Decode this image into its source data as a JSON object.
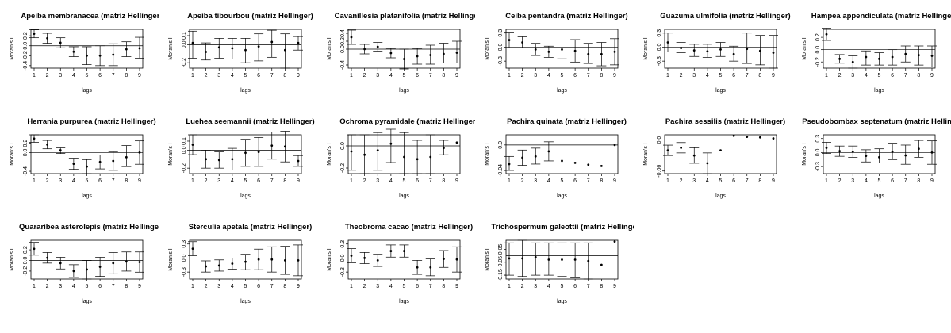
{
  "chart_data": [
    {
      "type": "scatter",
      "title": "Apeiba membranacea (matriz Hellinger)",
      "xlabel": "lags",
      "ylabel": "Moran's I",
      "x": [
        1,
        2,
        3,
        4,
        5,
        6,
        7,
        8,
        9
      ],
      "yticks": [
        -0.4,
        -0.2,
        0,
        0.2
      ],
      "ylim": [
        -0.45,
        0.33
      ],
      "y": [
        0.24,
        0.15,
        0.06,
        -0.12,
        -0.2,
        -0.2,
        -0.18,
        -0.07,
        -0.05
      ],
      "lower": [
        0.16,
        0.05,
        -0.04,
        -0.22,
        -0.38,
        -0.4,
        -0.4,
        -0.22,
        -0.25
      ],
      "upper": [
        0.32,
        0.25,
        0.16,
        -0.02,
        -0.02,
        0,
        0.04,
        0.08,
        0.17
      ]
    },
    {
      "type": "scatter",
      "title": "Apeiba tibourbou (matriz Hellinger)",
      "xlabel": "lags",
      "ylabel": "Moran's I",
      "x": [
        1,
        2,
        3,
        4,
        5,
        6,
        7,
        8,
        9
      ],
      "yticks": [
        -0.2,
        0,
        0.1
      ],
      "ylim": [
        -0.26,
        0.17
      ],
      "y": [
        0.02,
        -0.08,
        -0.03,
        -0.04,
        -0.06,
        -0.02,
        0.03,
        -0.06,
        0.02
      ],
      "lower": [
        -0.15,
        -0.17,
        -0.15,
        -0.16,
        -0.2,
        -0.18,
        -0.14,
        -0.26,
        -0.06
      ],
      "upper": [
        0.15,
        0.02,
        0.07,
        0.07,
        0.07,
        0.12,
        0.16,
        0.12,
        0.09
      ]
    },
    {
      "type": "scatter",
      "title": "Cavanillesia platanifolia (matriz Hellinger)",
      "xlabel": "lags",
      "ylabel": "Moran's I",
      "x": [
        1,
        2,
        3,
        4,
        5,
        6,
        7,
        8,
        9
      ],
      "yticks": [
        -0.4,
        0,
        0.2,
        0.4
      ],
      "ylim": [
        -0.48,
        0.5
      ],
      "y": [
        0.3,
        0,
        0.06,
        -0.1,
        -0.25,
        -0.18,
        -0.15,
        -0.12,
        -0.09
      ],
      "lower": [
        0.12,
        -0.12,
        -0.05,
        -0.22,
        -0.5,
        -0.38,
        -0.38,
        -0.35,
        -0.35
      ],
      "upper": [
        0.48,
        0.12,
        0.17,
        0.02,
        0,
        0.02,
        0.1,
        0.15,
        0.2
      ]
    },
    {
      "type": "scatter",
      "title": "Ceiba pentandra (matriz Hellinger)",
      "xlabel": "lags",
      "ylabel": "Moran's I",
      "x": [
        1,
        2,
        3,
        4,
        5,
        6,
        7,
        8,
        9
      ],
      "yticks": [
        -0.3,
        0,
        0.3
      ],
      "ylim": [
        -0.45,
        0.38
      ],
      "y": [
        0.15,
        0.1,
        -0.05,
        -0.1,
        -0.05,
        -0.08,
        -0.15,
        -0.15,
        -0.1
      ],
      "lower": [
        -0.02,
        -0.02,
        -0.18,
        -0.22,
        -0.25,
        -0.32,
        -0.35,
        -0.4,
        -0.38
      ],
      "upper": [
        0.32,
        0.22,
        0.08,
        0.02,
        0.15,
        0.16,
        0.08,
        0.1,
        0.18
      ]
    },
    {
      "type": "scatter",
      "title": "Guazuma ulmifolia (matriz Hellinger)",
      "xlabel": "lags",
      "ylabel": "Moran's I",
      "x": [
        1,
        2,
        3,
        4,
        5,
        6,
        7,
        8,
        9
      ],
      "yticks": [
        -0.3,
        0,
        0.3
      ],
      "ylim": [
        -0.45,
        0.38
      ],
      "y": [
        0.1,
        -0.02,
        -0.07,
        -0.09,
        -0.05,
        -0.15,
        -0.04,
        -0.08,
        -0.12
      ],
      "lower": [
        -0.1,
        -0.12,
        -0.2,
        -0.22,
        -0.2,
        -0.3,
        -0.35,
        -0.38,
        -0.45
      ],
      "upper": [
        0.3,
        0.1,
        0.06,
        0.06,
        0.1,
        0.02,
        0.3,
        0.25,
        0.25
      ]
    },
    {
      "type": "scatter",
      "title": "Hampea appendiculata (matriz Hellinger)",
      "xlabel": "lags",
      "ylabel": "Moran's I",
      "x": [
        1,
        2,
        3,
        4,
        5,
        6,
        7,
        8,
        9
      ],
      "yticks": [
        -0.2,
        0,
        0.2
      ],
      "ylim": [
        -0.3,
        0.33
      ],
      "y": [
        0.25,
        -0.15,
        -0.2,
        -0.12,
        -0.15,
        -0.12,
        -0.07,
        -0.09,
        -0.1
      ],
      "lower": [
        0.15,
        -0.22,
        -0.3,
        -0.25,
        -0.25,
        -0.25,
        -0.2,
        -0.25,
        -0.28
      ],
      "upper": [
        0.35,
        -0.08,
        -0.1,
        -0.02,
        -0.05,
        0,
        0.06,
        0.06,
        0.06
      ]
    },
    {
      "type": "scatter",
      "title": "Herrania purpurea (matriz Hellinger)",
      "xlabel": "lags",
      "ylabel": "Moran's I",
      "x": [
        1,
        2,
        3,
        4,
        5,
        6,
        7,
        8,
        9
      ],
      "yticks": [
        -0.4,
        0,
        0.2
      ],
      "ylim": [
        -0.45,
        0.38
      ],
      "y": [
        0.3,
        0.17,
        0.05,
        -0.24,
        -0.3,
        -0.2,
        -0.18,
        -0.1,
        0
      ],
      "lower": [
        0.22,
        0.08,
        -0.02,
        -0.36,
        -0.45,
        -0.35,
        -0.38,
        -0.3,
        -0.25
      ],
      "upper": [
        0.38,
        0.26,
        0.1,
        -0.12,
        -0.15,
        -0.05,
        0.02,
        0.15,
        0.25
      ]
    },
    {
      "type": "scatter",
      "title": "Luehea seemannii (matriz Hellinger)",
      "xlabel": "lags",
      "ylabel": "Moran's I",
      "x": [
        1,
        2,
        3,
        4,
        5,
        6,
        7,
        8,
        9
      ],
      "yticks": [
        -0.2,
        0,
        0.1
      ],
      "ylim": [
        -0.26,
        0.17
      ],
      "y": [
        0.06,
        -0.1,
        -0.11,
        -0.1,
        -0.03,
        -0.02,
        0.05,
        0.04,
        -0.12
      ],
      "lower": [
        -0.05,
        -0.2,
        -0.2,
        -0.22,
        -0.18,
        -0.18,
        -0.1,
        -0.13,
        -0.18
      ],
      "upper": [
        0.17,
        0,
        -0.02,
        0.02,
        0.12,
        0.14,
        0.2,
        0.21,
        -0.06
      ]
    },
    {
      "type": "scatter",
      "title": "Ochroma pyramidale (matriz Hellinger)",
      "xlabel": "lags",
      "ylabel": "Moran's I",
      "x": [
        1,
        2,
        3,
        4,
        5,
        6,
        7,
        8,
        9
      ],
      "yticks": [
        -0.2,
        0
      ],
      "ylim": [
        -0.25,
        0.1
      ],
      "y": [
        -0.05,
        -0.08,
        -0.04,
        0.02,
        -0.1,
        -0.12,
        -0.1,
        -0.02,
        0.03
      ],
      "lower": [
        -0.22,
        -0.25,
        -0.22,
        -0.15,
        -0.25,
        -0.25,
        -0.25,
        -0.08,
        null
      ],
      "upper": [
        0.1,
        0.1,
        0.12,
        0.15,
        0.12,
        0.05,
        0.1,
        0.05,
        null
      ]
    },
    {
      "type": "scatter",
      "title": "Pachira quinata (matriz Hellinger)",
      "xlabel": "lags",
      "ylabel": "Moran's I",
      "x": [
        1,
        2,
        3,
        4,
        5,
        6,
        7,
        8,
        9
      ],
      "yticks": [
        -0.04,
        0
      ],
      "ylim": [
        -0.045,
        0.016
      ],
      "y": [
        -0.03,
        -0.02,
        -0.018,
        -0.01,
        -0.025,
        -0.028,
        -0.031,
        -0.033,
        0.0
      ],
      "lower": [
        -0.04,
        -0.032,
        -0.03,
        -0.025,
        null,
        null,
        null,
        null,
        null
      ],
      "upper": [
        -0.018,
        -0.008,
        -0.005,
        0.005,
        null,
        null,
        null,
        null,
        null
      ]
    },
    {
      "type": "scatter",
      "title": "Pachira sessilis (matriz Hellinger)",
      "xlabel": "lags",
      "ylabel": "Moran's I",
      "x": [
        1,
        2,
        3,
        4,
        5,
        6,
        7,
        8,
        9
      ],
      "yticks": [
        -0.06,
        0
      ],
      "ylim": [
        -0.065,
        0.01
      ],
      "y": [
        -0.02,
        -0.015,
        -0.03,
        -0.045,
        -0.02,
        0.008,
        0.006,
        0.005,
        0.003
      ],
      "lower": [
        -0.03,
        -0.025,
        -0.045,
        -0.065,
        null,
        null,
        null,
        null,
        null
      ],
      "upper": [
        -0.01,
        -0.005,
        -0.015,
        -0.025,
        null,
        null,
        null,
        null,
        null
      ]
    },
    {
      "type": "scatter",
      "title": "Pseudobombax septenatum (matriz Hellinger)",
      "xlabel": "lags",
      "ylabel": "Moran's I",
      "x": [
        1,
        2,
        3,
        4,
        5,
        6,
        7,
        8,
        9
      ],
      "yticks": [
        -0.3,
        0,
        0.3
      ],
      "ylim": [
        -0.45,
        0.38
      ],
      "y": [
        0.1,
        0.03,
        0.02,
        -0.07,
        -0.1,
        0.02,
        -0.06,
        0.08,
        0
      ],
      "lower": [
        -0.02,
        -0.08,
        -0.1,
        -0.2,
        -0.22,
        -0.15,
        -0.25,
        -0.1,
        -0.25
      ],
      "upper": [
        0.22,
        0.14,
        0.14,
        0.06,
        0.08,
        0.2,
        0.16,
        0.26,
        0.25
      ]
    },
    {
      "type": "scatter",
      "title": "Quararibea asterolepis (matriz Hellinger)",
      "xlabel": "lags",
      "ylabel": "Moran's I",
      "x": [
        1,
        2,
        3,
        4,
        5,
        6,
        7,
        8,
        9
      ],
      "yticks": [
        -0.2,
        0,
        0.2
      ],
      "ylim": [
        -0.35,
        0.38
      ],
      "y": [
        0.22,
        0.05,
        -0.05,
        -0.2,
        -0.17,
        -0.12,
        -0.05,
        -0.02,
        -0.03
      ],
      "lower": [
        0.1,
        -0.05,
        -0.16,
        -0.32,
        -0.35,
        -0.3,
        -0.25,
        -0.2,
        -0.22
      ],
      "upper": [
        0.34,
        0.15,
        0.06,
        -0.08,
        0,
        0.06,
        0.15,
        0.16,
        0.16
      ]
    },
    {
      "type": "scatter",
      "title": "Sterculia apetala (matriz Hellinger)",
      "xlabel": "lags",
      "ylabel": "Moran's I",
      "x": [
        1,
        2,
        3,
        4,
        5,
        6,
        7,
        8,
        9
      ],
      "yticks": [
        -0.3,
        0,
        0.3
      ],
      "ylim": [
        -0.45,
        0.38
      ],
      "y": [
        0.2,
        -0.18,
        -0.16,
        -0.12,
        -0.08,
        -0.03,
        -0.03,
        -0.05,
        -0.05
      ],
      "lower": [
        0.05,
        -0.3,
        -0.28,
        -0.24,
        -0.25,
        -0.25,
        -0.3,
        -0.35,
        -0.38
      ],
      "upper": [
        0.35,
        -0.06,
        -0.04,
        0,
        0.08,
        0.19,
        0.24,
        0.25,
        0.28
      ]
    },
    {
      "type": "scatter",
      "title": "Theobroma cacao (matriz Hellinger)",
      "xlabel": "lags",
      "ylabel": "Moran's I",
      "x": [
        1,
        2,
        3,
        4,
        5,
        6,
        7,
        8,
        9
      ],
      "yticks": [
        -0.3,
        0,
        0.3
      ],
      "ylim": [
        -0.45,
        0.38
      ],
      "y": [
        0.05,
        0,
        -0.05,
        0.15,
        0.15,
        -0.2,
        -0.2,
        -0.02,
        -0.03
      ],
      "lower": [
        -0.1,
        -0.12,
        -0.18,
        0.02,
        0.02,
        -0.35,
        -0.38,
        -0.2,
        -0.3
      ],
      "upper": [
        0.2,
        0.12,
        0.08,
        0.28,
        0.28,
        -0.05,
        -0.02,
        0.16,
        0.24
      ]
    },
    {
      "type": "scatter",
      "title": "Trichospermum galeottii (matriz Hellinger)",
      "xlabel": "lags",
      "ylabel": "Moran's I",
      "x": [
        1,
        2,
        3,
        4,
        5,
        6,
        7,
        8,
        9
      ],
      "yticks": [
        -0.15,
        -0.05,
        0.05
      ],
      "ylim": [
        -0.18,
        0.12
      ],
      "y": [
        -0.02,
        -0.02,
        -0.01,
        -0.03,
        -0.03,
        -0.03,
        -0.04,
        -0.07,
        0.11
      ],
      "lower": [
        -0.15,
        -0.16,
        -0.15,
        -0.15,
        -0.16,
        -0.17,
        -0.18,
        null,
        null
      ],
      "upper": [
        0.1,
        0.12,
        0.1,
        0.1,
        0.1,
        0.1,
        0.1,
        null,
        null
      ]
    }
  ]
}
